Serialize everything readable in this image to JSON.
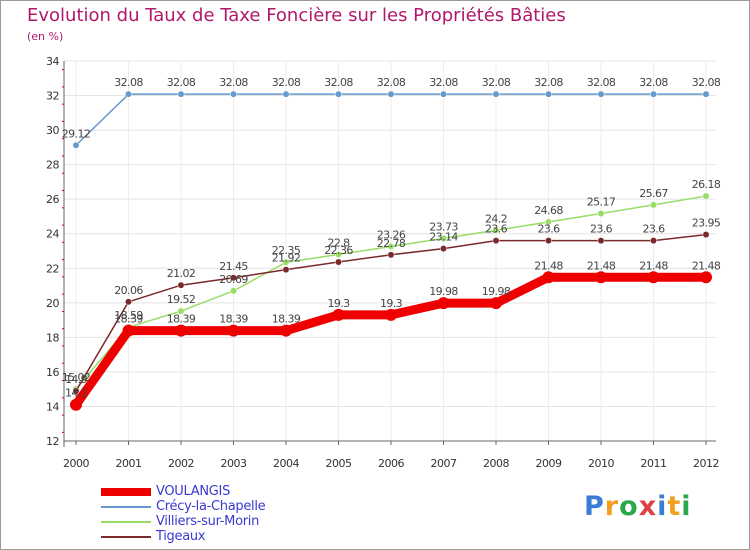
{
  "title": "Evolution du Taux de Taxe Foncière sur les Propriétés Bâties",
  "unit": "(en %)",
  "logo": "Proxiti",
  "chart_data": {
    "type": "line",
    "title": "Evolution du Taux de Taxe Foncière sur les Propriétés Bâties",
    "ylabel": "(en %)",
    "xlabel": "",
    "x": [
      "2000",
      "2001",
      "2002",
      "2003",
      "2004",
      "2005",
      "2006",
      "2007",
      "2008",
      "2009",
      "2010",
      "2011",
      "2012"
    ],
    "ylim": [
      12,
      34
    ],
    "yticks": [
      12,
      14,
      16,
      18,
      20,
      22,
      24,
      26,
      28,
      30,
      32,
      34
    ],
    "series": [
      {
        "name": "VOULANGIS",
        "color": "#ee0000",
        "values": [
          14.1,
          18.39,
          18.39,
          18.39,
          18.39,
          19.3,
          19.3,
          19.98,
          19.98,
          21.48,
          21.48,
          21.48,
          21.48
        ],
        "labels": [
          "14.1",
          "18.39",
          "18.39",
          "18.39",
          "18.39",
          "19.3",
          "19.3",
          "19.98",
          "19.98",
          "21.48",
          "21.48",
          "21.48",
          "21.48"
        ]
      },
      {
        "name": "Crécy-la-Chapelle",
        "color": "#6699cc",
        "values": [
          29.12,
          32.08,
          32.08,
          32.08,
          32.08,
          32.08,
          32.08,
          32.08,
          32.08,
          32.08,
          32.08,
          32.08,
          32.08
        ],
        "labels": [
          "29.12",
          "32.08",
          "32.08",
          "32.08",
          "32.08",
          "32.08",
          "32.08",
          "32.08",
          "32.08",
          "32.08",
          "32.08",
          "32.08",
          "32.08"
        ]
      },
      {
        "name": "Villiers-sur-Morin",
        "color": "#99dd66",
        "values": [
          15.02,
          18.59,
          19.52,
          20.69,
          22.35,
          22.8,
          23.26,
          23.73,
          24.2,
          24.68,
          25.17,
          25.67,
          26.18
        ],
        "labels": [
          "15.02",
          "18.59",
          "19.52",
          "20.69",
          "22.35",
          "22.8",
          "23.26",
          "23.73",
          "24.2",
          "24.68",
          "25.17",
          "25.67",
          "26.18"
        ]
      },
      {
        "name": "Tigeaux",
        "color": "#7a2a2a",
        "values": [
          14.9,
          20.06,
          21.02,
          21.45,
          21.92,
          22.36,
          22.78,
          23.14,
          23.6,
          23.6,
          23.6,
          23.6,
          23.95
        ],
        "labels": [
          "14.9",
          "20.06",
          "21.02",
          "21.45",
          "21.92",
          "22.36",
          "22.78",
          "23.14",
          "23.6",
          "23.6",
          "23.6",
          "23.6",
          "23.95"
        ]
      }
    ],
    "legend": [
      "VOULANGIS",
      "Crécy-la-Chapelle",
      "Villiers-sur-Morin",
      "Tigeaux"
    ],
    "legend_position": "bottom-left"
  }
}
